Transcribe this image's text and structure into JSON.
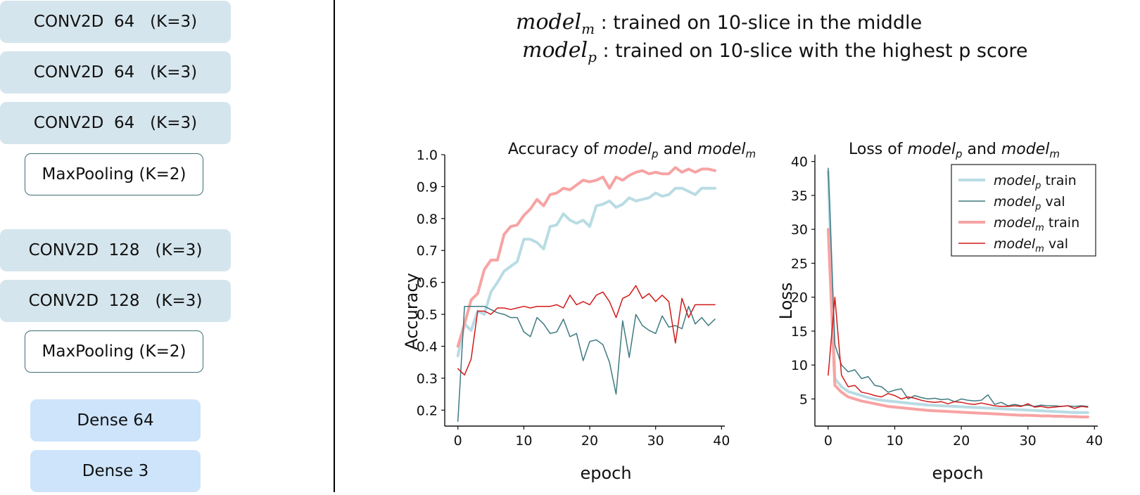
{
  "architecture": {
    "layers": [
      {
        "label": "CONV2D  64   (K=3)",
        "kind": "conv"
      },
      {
        "label": "CONV2D  64   (K=3)",
        "kind": "conv"
      },
      {
        "label": "CONV2D  64   (K=3)",
        "kind": "conv"
      },
      {
        "label": "MaxPooling (K=2)",
        "kind": "pool"
      },
      {
        "label": "CONV2D  128   (K=3)",
        "kind": "conv"
      },
      {
        "label": "CONV2D  128   (K=3)",
        "kind": "conv"
      },
      {
        "label": "MaxPooling (K=2)",
        "kind": "pool"
      },
      {
        "label": "Dense 64",
        "kind": "dense"
      },
      {
        "label": "Dense 3",
        "kind": "dense"
      }
    ]
  },
  "captions": {
    "line1_math": "model",
    "line1_sub": "m",
    "line1_text": " : trained on 10-slice in the middle",
    "line2_math": "model",
    "line2_sub": "p",
    "line2_text": " : trained on 10-slice with the highest p score"
  },
  "colors": {
    "model_p_train": "#b9dce4",
    "model_p_val": "#3f7a80",
    "model_m_train": "#f7a3a3",
    "model_m_val": "#d11a1a"
  },
  "chart_data": [
    {
      "type": "line",
      "title": "Accuracy of modelp and modelm",
      "xlabel": "epoch",
      "ylabel": "Accuracy",
      "xlim": [
        -2,
        40.5
      ],
      "ylim": [
        0.15,
        1.0
      ],
      "xticks": [
        0,
        10,
        20,
        30,
        40
      ],
      "yticks": [
        0.2,
        0.3,
        0.4,
        0.5,
        0.6,
        0.7,
        0.8,
        0.9,
        1.0
      ],
      "ytick_labels": [
        "0.2",
        "0.3",
        "0.4",
        "0.5",
        "0.6",
        "0.7",
        "0.8",
        "0.9",
        "1.0"
      ],
      "grid": false,
      "series": [
        {
          "key": "model_p_train",
          "width": 4,
          "values": [
            0.37,
            0.47,
            0.45,
            0.51,
            0.5,
            0.57,
            0.6,
            0.635,
            0.65,
            0.665,
            0.735,
            0.735,
            0.725,
            0.705,
            0.775,
            0.78,
            0.815,
            0.795,
            0.785,
            0.795,
            0.775,
            0.84,
            0.845,
            0.855,
            0.835,
            0.845,
            0.865,
            0.855,
            0.86,
            0.865,
            0.88,
            0.87,
            0.875,
            0.895,
            0.895,
            0.885,
            0.875,
            0.895,
            0.895,
            0.895
          ]
        },
        {
          "key": "model_p_val",
          "width": 1.5,
          "values": [
            0.165,
            0.525,
            0.525,
            0.525,
            0.525,
            0.515,
            0.505,
            0.5,
            0.49,
            0.49,
            0.445,
            0.43,
            0.49,
            0.47,
            0.44,
            0.445,
            0.485,
            0.43,
            0.44,
            0.355,
            0.415,
            0.42,
            0.405,
            0.35,
            0.25,
            0.48,
            0.365,
            0.5,
            0.465,
            0.45,
            0.44,
            0.495,
            0.46,
            0.465,
            0.455,
            0.525,
            0.47,
            0.49,
            0.465,
            0.485
          ]
        },
        {
          "key": "model_m_train",
          "width": 4,
          "values": [
            0.4,
            0.47,
            0.545,
            0.565,
            0.64,
            0.67,
            0.67,
            0.75,
            0.775,
            0.78,
            0.81,
            0.83,
            0.86,
            0.84,
            0.875,
            0.88,
            0.895,
            0.89,
            0.905,
            0.92,
            0.915,
            0.92,
            0.93,
            0.895,
            0.93,
            0.92,
            0.935,
            0.945,
            0.95,
            0.94,
            0.945,
            0.94,
            0.94,
            0.96,
            0.945,
            0.955,
            0.945,
            0.955,
            0.955,
            0.95
          ]
        },
        {
          "key": "model_m_val",
          "width": 1.5,
          "values": [
            0.33,
            0.31,
            0.36,
            0.51,
            0.51,
            0.5,
            0.52,
            0.52,
            0.515,
            0.52,
            0.525,
            0.52,
            0.525,
            0.525,
            0.525,
            0.53,
            0.52,
            0.56,
            0.53,
            0.54,
            0.53,
            0.56,
            0.57,
            0.54,
            0.49,
            0.55,
            0.56,
            0.59,
            0.55,
            0.565,
            0.54,
            0.56,
            0.54,
            0.41,
            0.55,
            0.49,
            0.53,
            0.53,
            0.53,
            0.53
          ]
        }
      ]
    },
    {
      "type": "line",
      "title": "Loss of modelp and modelm",
      "xlabel": "epoch",
      "ylabel": "Loss",
      "xlim": [
        -2,
        40.5
      ],
      "ylim": [
        1,
        41
      ],
      "xticks": [
        0,
        10,
        20,
        30,
        40
      ],
      "yticks": [
        5,
        10,
        15,
        20,
        25,
        30,
        35,
        40
      ],
      "ytick_labels": [
        "5",
        "10",
        "15",
        "20",
        "25",
        "30",
        "35",
        "40"
      ],
      "grid": false,
      "legend": "top-right",
      "series": [
        {
          "key": "model_p_train",
          "width": 4,
          "label": "model",
          "sub": "p",
          "suffix": " train",
          "values": [
            38.5,
            8.0,
            6.8,
            6.1,
            5.8,
            5.5,
            5.2,
            5.0,
            4.8,
            4.7,
            4.6,
            4.5,
            4.4,
            4.3,
            4.2,
            4.1,
            4.05,
            4.0,
            3.95,
            3.9,
            3.85,
            3.8,
            3.75,
            3.7,
            3.65,
            3.6,
            3.55,
            3.5,
            3.45,
            3.4,
            3.35,
            3.3,
            3.25,
            3.2,
            3.15,
            3.1,
            3.05,
            3.0,
            3.0,
            3.0
          ]
        },
        {
          "key": "model_p_val",
          "width": 1.5,
          "label": "model",
          "sub": "p",
          "suffix": " val",
          "values": [
            39.0,
            13.0,
            10.0,
            9.0,
            9.3,
            8.0,
            8.3,
            7.0,
            6.8,
            6.0,
            6.3,
            6.5,
            5.0,
            5.5,
            5.2,
            5.0,
            5.1,
            4.9,
            5.0,
            4.6,
            5.0,
            4.8,
            4.7,
            4.8,
            5.6,
            4.2,
            4.5,
            4.0,
            4.2,
            4.0,
            4.1,
            3.9,
            4.1,
            4.0,
            4.0,
            3.9,
            4.0,
            3.9,
            4.0,
            3.9
          ]
        },
        {
          "key": "model_m_train",
          "width": 4,
          "label": "model",
          "sub": "m",
          "suffix": " train",
          "values": [
            30.0,
            7.0,
            6.0,
            5.3,
            5.0,
            4.7,
            4.5,
            4.3,
            4.1,
            3.9,
            3.8,
            3.7,
            3.6,
            3.5,
            3.4,
            3.3,
            3.25,
            3.2,
            3.15,
            3.1,
            3.05,
            3.0,
            2.95,
            2.9,
            2.85,
            2.8,
            2.75,
            2.7,
            2.65,
            2.6,
            2.6,
            2.55,
            2.5,
            2.5,
            2.45,
            2.45,
            2.4,
            2.4,
            2.35,
            2.35
          ]
        },
        {
          "key": "model_m_val",
          "width": 1.5,
          "label": "model",
          "sub": "m",
          "suffix": " val",
          "values": [
            8.5,
            20.0,
            8.5,
            6.8,
            7.0,
            6.0,
            5.8,
            5.5,
            5.3,
            5.8,
            5.5,
            5.0,
            5.3,
            5.1,
            4.8,
            4.6,
            4.5,
            4.6,
            4.3,
            4.6,
            4.5,
            4.3,
            4.2,
            4.4,
            4.2,
            4.0,
            3.9,
            3.9,
            4.0,
            3.9,
            4.3,
            3.8,
            3.9,
            3.7,
            3.8,
            3.9,
            4.0,
            3.6,
            3.9,
            3.8
          ]
        }
      ]
    }
  ]
}
